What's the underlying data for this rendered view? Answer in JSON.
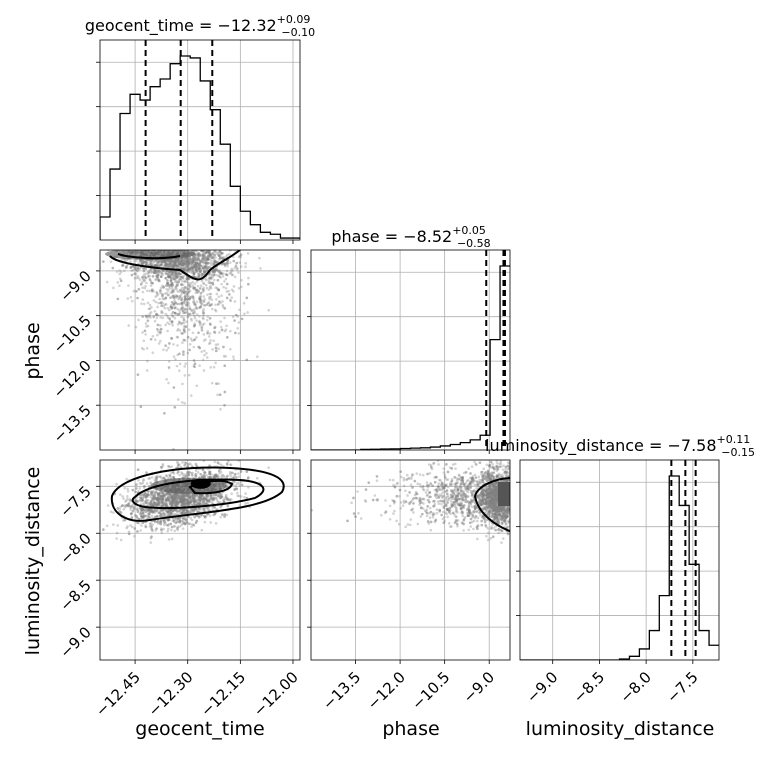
{
  "chart_data": {
    "type": "corner",
    "parameters": [
      "geocent_time",
      "phase",
      "luminosity_distance"
    ],
    "titles": {
      "geocent_time": {
        "prefix": "geocent_time = −12.32",
        "plus": "+0.09",
        "minus": "−0.10"
      },
      "phase": {
        "prefix": "phase = −8.52",
        "plus": "+0.05",
        "minus": "−0.58"
      },
      "luminosity_distance": {
        "prefix": "luminosity_distance = −7.58",
        "plus": "+0.11",
        "minus": "−0.15"
      }
    },
    "axis_labels": {
      "geocent_time": "geocent_time",
      "phase": "phase",
      "luminosity_distance": "luminosity_distance"
    },
    "ranges": {
      "geocent_time": [
        -12.55,
        -11.98
      ],
      "phase": [
        -15.0,
        -8.3
      ],
      "luminosity_distance": [
        -9.35,
        -7.22
      ]
    },
    "ticks": {
      "geocent_time": [
        {
          "v": -12.45,
          "label": "−12.45"
        },
        {
          "v": -12.3,
          "label": "−12.30"
        },
        {
          "v": -12.15,
          "label": "−12.15"
        },
        {
          "v": -12.0,
          "label": "−12.00"
        }
      ],
      "phase": [
        {
          "v": -13.5,
          "label": "−13.5"
        },
        {
          "v": -12.0,
          "label": "−12.0"
        },
        {
          "v": -10.5,
          "label": "−10.5"
        },
        {
          "v": -9.0,
          "label": "−9.0"
        }
      ],
      "luminosity_distance": [
        {
          "v": -9.0,
          "label": "−9.0"
        },
        {
          "v": -8.5,
          "label": "−8.5"
        },
        {
          "v": -8.0,
          "label": "−8.0"
        },
        {
          "v": -7.5,
          "label": "−7.5"
        }
      ]
    },
    "quantiles": {
      "geocent_time": [
        -12.42,
        -12.32,
        -12.23
      ],
      "phase": [
        -9.1,
        -8.52,
        -8.47
      ],
      "luminosity_distance": [
        -7.73,
        -7.58,
        -7.47
      ]
    },
    "histograms": {
      "geocent_time": {
        "edges_start": -12.55,
        "bin_width": 0.02857,
        "counts": [
          12,
          37,
          66,
          76,
          73,
          80,
          84,
          92,
          96,
          95,
          83,
          68,
          50,
          28,
          15,
          8,
          4,
          3,
          1,
          1
        ]
      },
      "phase": {
        "edges_start": -15.0,
        "bin_width": 0.335,
        "counts": [
          0,
          0,
          0,
          0,
          0,
          0.3,
          0.4,
          0.5,
          0.6,
          0.8,
          1,
          1.2,
          1.6,
          2.2,
          3,
          4,
          5.5,
          8,
          60,
          100
        ]
      },
      "luminosity_distance": {
        "edges_start": -9.35,
        "bin_width": 0.1065,
        "counts": [
          0,
          0,
          0,
          0,
          0,
          0,
          0,
          0,
          0,
          0,
          0.5,
          2,
          6,
          16,
          35,
          100,
          84,
          52,
          16,
          8
        ]
      }
    },
    "grid": true,
    "scatter_color": "#808080",
    "density_color": "#000000"
  }
}
